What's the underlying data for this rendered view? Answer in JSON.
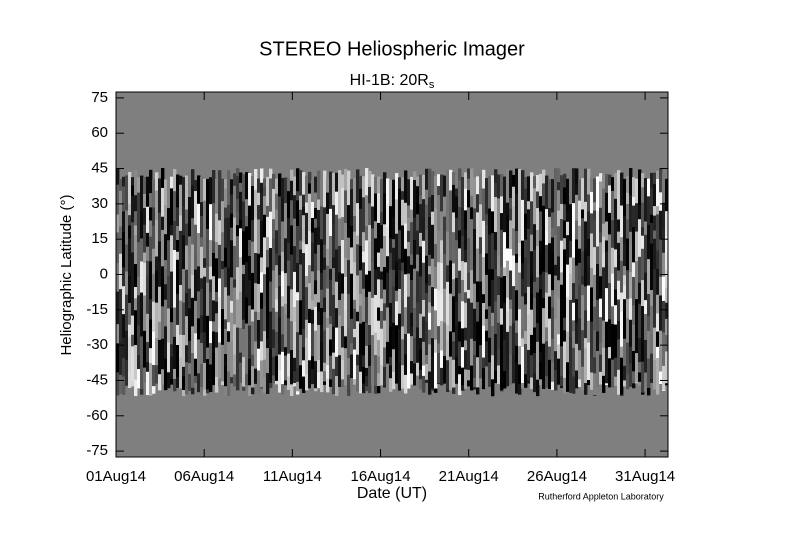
{
  "chart_data": {
    "type": "image",
    "title": "STEREO Heliospheric Imager",
    "subtitle": "HI-1B: 20R",
    "subtitle_subscript": "s",
    "x_label": "Date (UT)",
    "y_label": "Heliographic Latitude (°)",
    "credit": "Rutherford Appleton Laboratory",
    "xlim": [
      1,
      32.3
    ],
    "xticks": [
      {
        "value": 1,
        "label": "01Aug14"
      },
      {
        "value": 6,
        "label": "06Aug14"
      },
      {
        "value": 11,
        "label": "11Aug14"
      },
      {
        "value": 16,
        "label": "16Aug14"
      },
      {
        "value": 21,
        "label": "21Aug14"
      },
      {
        "value": 26,
        "label": "26Aug14"
      },
      {
        "value": 31,
        "label": "31Aug14"
      }
    ],
    "ylim": [
      -77.5,
      77.5
    ],
    "yticks": [
      75,
      60,
      45,
      30,
      15,
      0,
      -15,
      -30,
      -45,
      -60,
      -75
    ]
  }
}
